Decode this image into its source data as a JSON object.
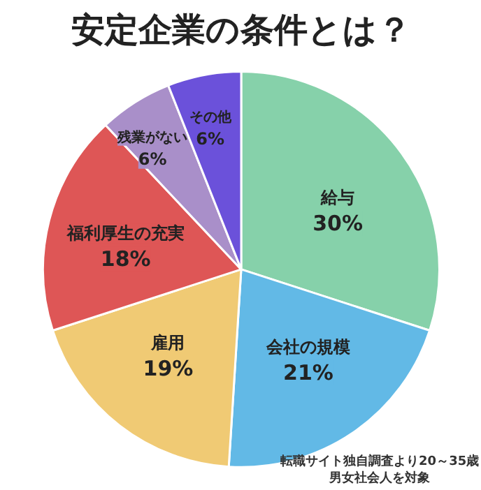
{
  "chart_data": {
    "type": "pie",
    "title": "安定企業の条件とは？",
    "categories": [
      "給与",
      "会社の規模",
      "雇用",
      "福利厚生の充実",
      "残業がない",
      "その他"
    ],
    "values": [
      30,
      21,
      19,
      18,
      6,
      6
    ],
    "value_labels": [
      "30%",
      "21%",
      "19%",
      "18%",
      "6%",
      "6%"
    ],
    "colors": [
      "#86d1aa",
      "#62b9e6",
      "#f0ca74",
      "#de5656",
      "#a98fc9",
      "#6b51da"
    ],
    "annotations": [
      "転職サイト独自調査より20～35歳",
      "男女社会人を対象"
    ]
  }
}
